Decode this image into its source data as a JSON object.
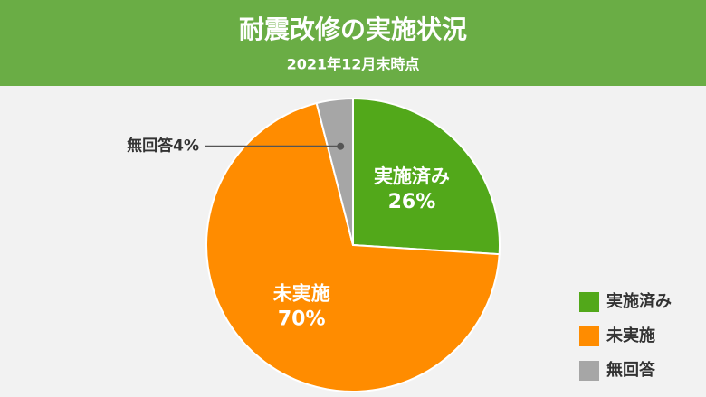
{
  "chart_data": {
    "type": "pie",
    "title": "耐震改修の実施状況",
    "subtitle": "2021年12月末時点",
    "categories": [
      "実施済み",
      "未実施",
      "無回答"
    ],
    "values": [
      26,
      70,
      4
    ],
    "value_labels": [
      "26%",
      "70%",
      "4%"
    ],
    "colors": [
      "#52a81a",
      "#ff8c00",
      "#a6a6a6"
    ],
    "legend": "bottom-right"
  }
}
